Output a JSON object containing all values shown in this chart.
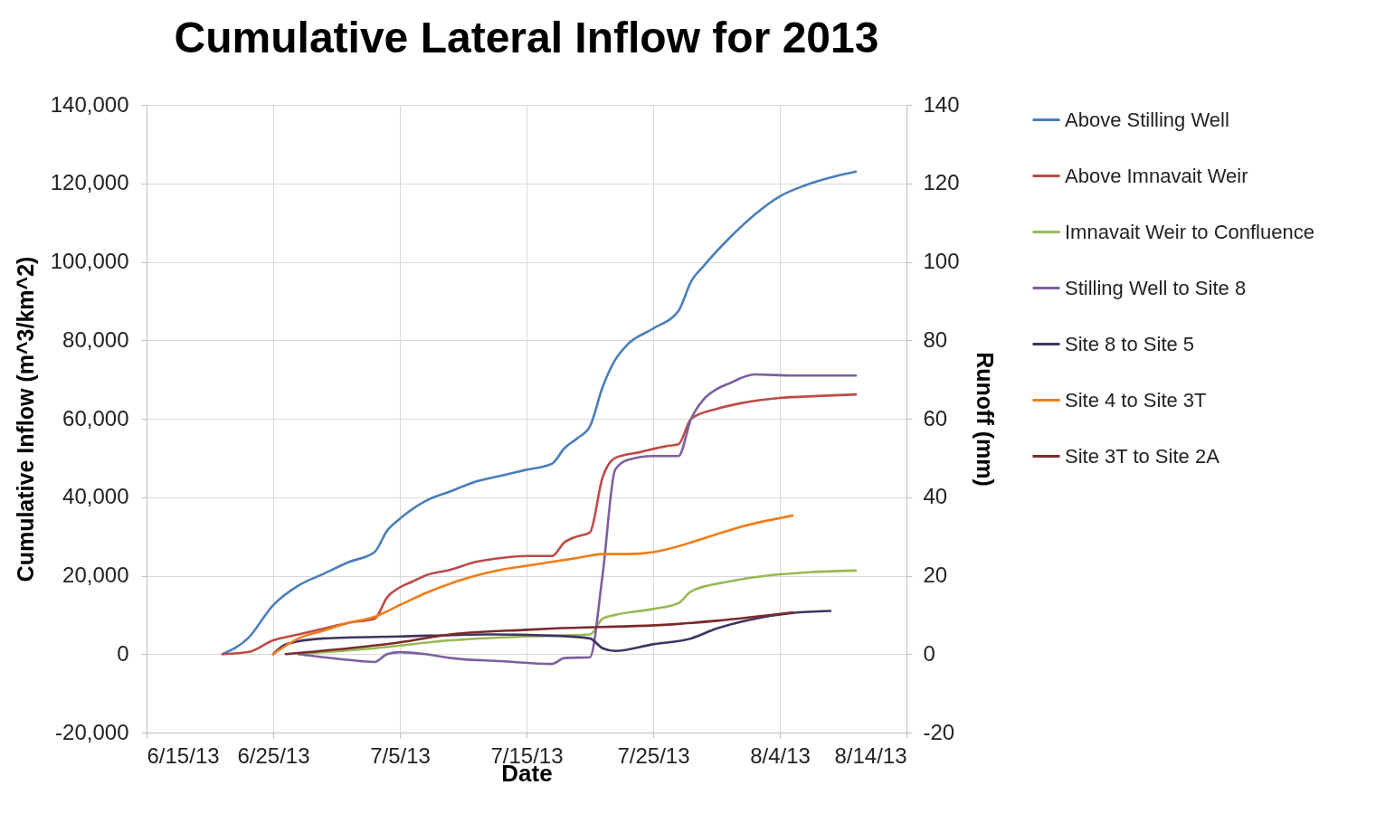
{
  "chart_data": {
    "type": "line",
    "title": "Cumulative Lateral Inflow for 2013",
    "xlabel": "Date",
    "ylabel": "Cumulative Inflow (m^3/km^2)",
    "y2label": "Runoff (mm)",
    "xlim": [
      "2013-06-15",
      "2013-08-14"
    ],
    "xticks": [
      {
        "value": "2013-06-15",
        "label": "6/15/13"
      },
      {
        "value": "2013-06-25",
        "label": "6/25/13"
      },
      {
        "value": "2013-07-05",
        "label": "7/5/13"
      },
      {
        "value": "2013-07-15",
        "label": "7/15/13"
      },
      {
        "value": "2013-07-25",
        "label": "7/25/13"
      },
      {
        "value": "2013-08-04",
        "label": "8/4/13"
      },
      {
        "value": "2013-08-14",
        "label": "8/14/13"
      }
    ],
    "ylim": [
      -20000,
      140000
    ],
    "yticks": [
      {
        "value": -20000,
        "label": "-20,000"
      },
      0,
      {
        "value": 20000,
        "label": "20,000"
      },
      {
        "value": 40000,
        "label": "40,000"
      },
      {
        "value": 60000,
        "label": "60,000"
      },
      {
        "value": 80000,
        "label": "80,000"
      },
      {
        "value": 100000,
        "label": "100,000"
      },
      {
        "value": 120000,
        "label": "120,000"
      },
      {
        "value": 140000,
        "label": "140,000"
      }
    ],
    "y2lim": [
      -20,
      140
    ],
    "y2ticks": [
      -20,
      0,
      20,
      40,
      60,
      80,
      100,
      120,
      140
    ],
    "grid": true,
    "legend": "right",
    "line_style": "solid",
    "marker": "none",
    "series": [
      {
        "name": "Above Stilling Well",
        "color": "#4a7ebb",
        "x": [
          "2013-06-21",
          "2013-06-23",
          "2013-06-25",
          "2013-06-27",
          "2013-06-29",
          "2013-07-01",
          "2013-07-03",
          "2013-07-04",
          "2013-07-05",
          "2013-07-07",
          "2013-07-09",
          "2013-07-11",
          "2013-07-13",
          "2013-07-15",
          "2013-07-17",
          "2013-07-18",
          "2013-07-19",
          "2013-07-20",
          "2013-07-21",
          "2013-07-22",
          "2013-07-23",
          "2013-07-25",
          "2013-07-27",
          "2013-07-28",
          "2013-07-29",
          "2013-07-31",
          "2013-08-02",
          "2013-08-04",
          "2013-08-06",
          "2013-08-08",
          "2013-08-10"
        ],
        "values": [
          0,
          4000,
          12500,
          17500,
          20500,
          23500,
          26000,
          31500,
          34500,
          39000,
          41500,
          44000,
          45500,
          47000,
          48500,
          52500,
          55000,
          58000,
          68000,
          75000,
          79000,
          83000,
          87500,
          95000,
          99000,
          106000,
          112000,
          116700,
          119500,
          121500,
          123000
        ]
      },
      {
        "name": "Above Imnavait Weir",
        "color": "#be4b48",
        "x": [
          "2013-06-21",
          "2013-06-23",
          "2013-06-25",
          "2013-06-27",
          "2013-06-29",
          "2013-07-01",
          "2013-07-03",
          "2013-07-04",
          "2013-07-05",
          "2013-07-06",
          "2013-07-07",
          "2013-07-09",
          "2013-07-11",
          "2013-07-13",
          "2013-07-15",
          "2013-07-17",
          "2013-07-18",
          "2013-07-19",
          "2013-07-20",
          "2013-07-21",
          "2013-07-22",
          "2013-07-24",
          "2013-07-26",
          "2013-07-27",
          "2013-07-28",
          "2013-07-30",
          "2013-08-01",
          "2013-08-04",
          "2013-08-07",
          "2013-08-10"
        ],
        "values": [
          0,
          500,
          3500,
          5000,
          6500,
          8000,
          9000,
          14500,
          17000,
          18500,
          20000,
          21500,
          23500,
          24500,
          25000,
          25000,
          28500,
          30000,
          31000,
          45000,
          50000,
          51500,
          53000,
          53500,
          60000,
          62500,
          64000,
          65300,
          65800,
          66200
        ]
      },
      {
        "name": "Imnavait Weir to Confluence",
        "color": "#98b954",
        "x": [
          "2013-06-27",
          "2013-07-03",
          "2013-07-09",
          "2013-07-15",
          "2013-07-20",
          "2013-07-21",
          "2013-07-22",
          "2013-07-25",
          "2013-07-27",
          "2013-07-28",
          "2013-07-31",
          "2013-08-03",
          "2013-08-06",
          "2013-08-10"
        ],
        "values": [
          0,
          1500,
          3500,
          4500,
          5000,
          9000,
          10000,
          11500,
          13000,
          16000,
          18500,
          20000,
          20800,
          21300
        ]
      },
      {
        "name": "Stilling Well to Site 8",
        "color": "#7d5fa0",
        "x": [
          "2013-06-27",
          "2013-07-01",
          "2013-07-03",
          "2013-07-04",
          "2013-07-05",
          "2013-07-07",
          "2013-07-09",
          "2013-07-13",
          "2013-07-17",
          "2013-07-18",
          "2013-07-20",
          "2013-07-21",
          "2013-07-22",
          "2013-07-23",
          "2013-07-25",
          "2013-07-27",
          "2013-07-28",
          "2013-07-29",
          "2013-07-30",
          "2013-07-31",
          "2013-08-02",
          "2013-08-05",
          "2013-08-10"
        ],
        "values": [
          0,
          -1500,
          -2000,
          0,
          500,
          0,
          -1000,
          -1800,
          -2500,
          -1000,
          -800,
          20000,
          47000,
          49500,
          50500,
          50500,
          60000,
          65000,
          67500,
          69000,
          71300,
          71000,
          71000
        ]
      },
      {
        "name": "Site 8 to Site 5",
        "color": "#403462",
        "x": [
          "2013-06-25",
          "2013-06-26",
          "2013-06-29",
          "2013-07-05",
          "2013-07-12",
          "2013-07-17",
          "2013-07-20",
          "2013-07-21",
          "2013-07-22",
          "2013-07-25",
          "2013-07-28",
          "2013-07-30",
          "2013-08-02",
          "2013-08-05",
          "2013-08-08"
        ],
        "values": [
          0,
          2500,
          4000,
          4500,
          5000,
          4700,
          4000,
          1500,
          800,
          2500,
          4000,
          6500,
          9000,
          10500,
          11000
        ]
      },
      {
        "name": "Site 4 to Site 3T",
        "color": "#f07d1a",
        "x": [
          "2013-06-25",
          "2013-06-27",
          "2013-06-29",
          "2013-07-01",
          "2013-07-03",
          "2013-07-05",
          "2013-07-07",
          "2013-07-09",
          "2013-07-11",
          "2013-07-13",
          "2013-07-15",
          "2013-07-17",
          "2013-07-19",
          "2013-07-21",
          "2013-07-23",
          "2013-07-25",
          "2013-07-27",
          "2013-07-29",
          "2013-08-01",
          "2013-08-05"
        ],
        "values": [
          0,
          4000,
          6000,
          8000,
          9500,
          12500,
          15500,
          18000,
          20000,
          21500,
          22500,
          23500,
          24500,
          25500,
          25500,
          26000,
          27500,
          29500,
          32500,
          35300
        ]
      },
      {
        "name": "Site 3T to Site 2A",
        "color": "#7b2a2c",
        "x": [
          "2013-06-26",
          "2013-07-01",
          "2013-07-05",
          "2013-07-09",
          "2013-07-15",
          "2013-07-17",
          "2013-07-27",
          "2013-07-30",
          "2013-08-05"
        ],
        "values": [
          0,
          1500,
          3000,
          5000,
          6200,
          6500,
          7700,
          8500,
          10600
        ]
      }
    ]
  }
}
